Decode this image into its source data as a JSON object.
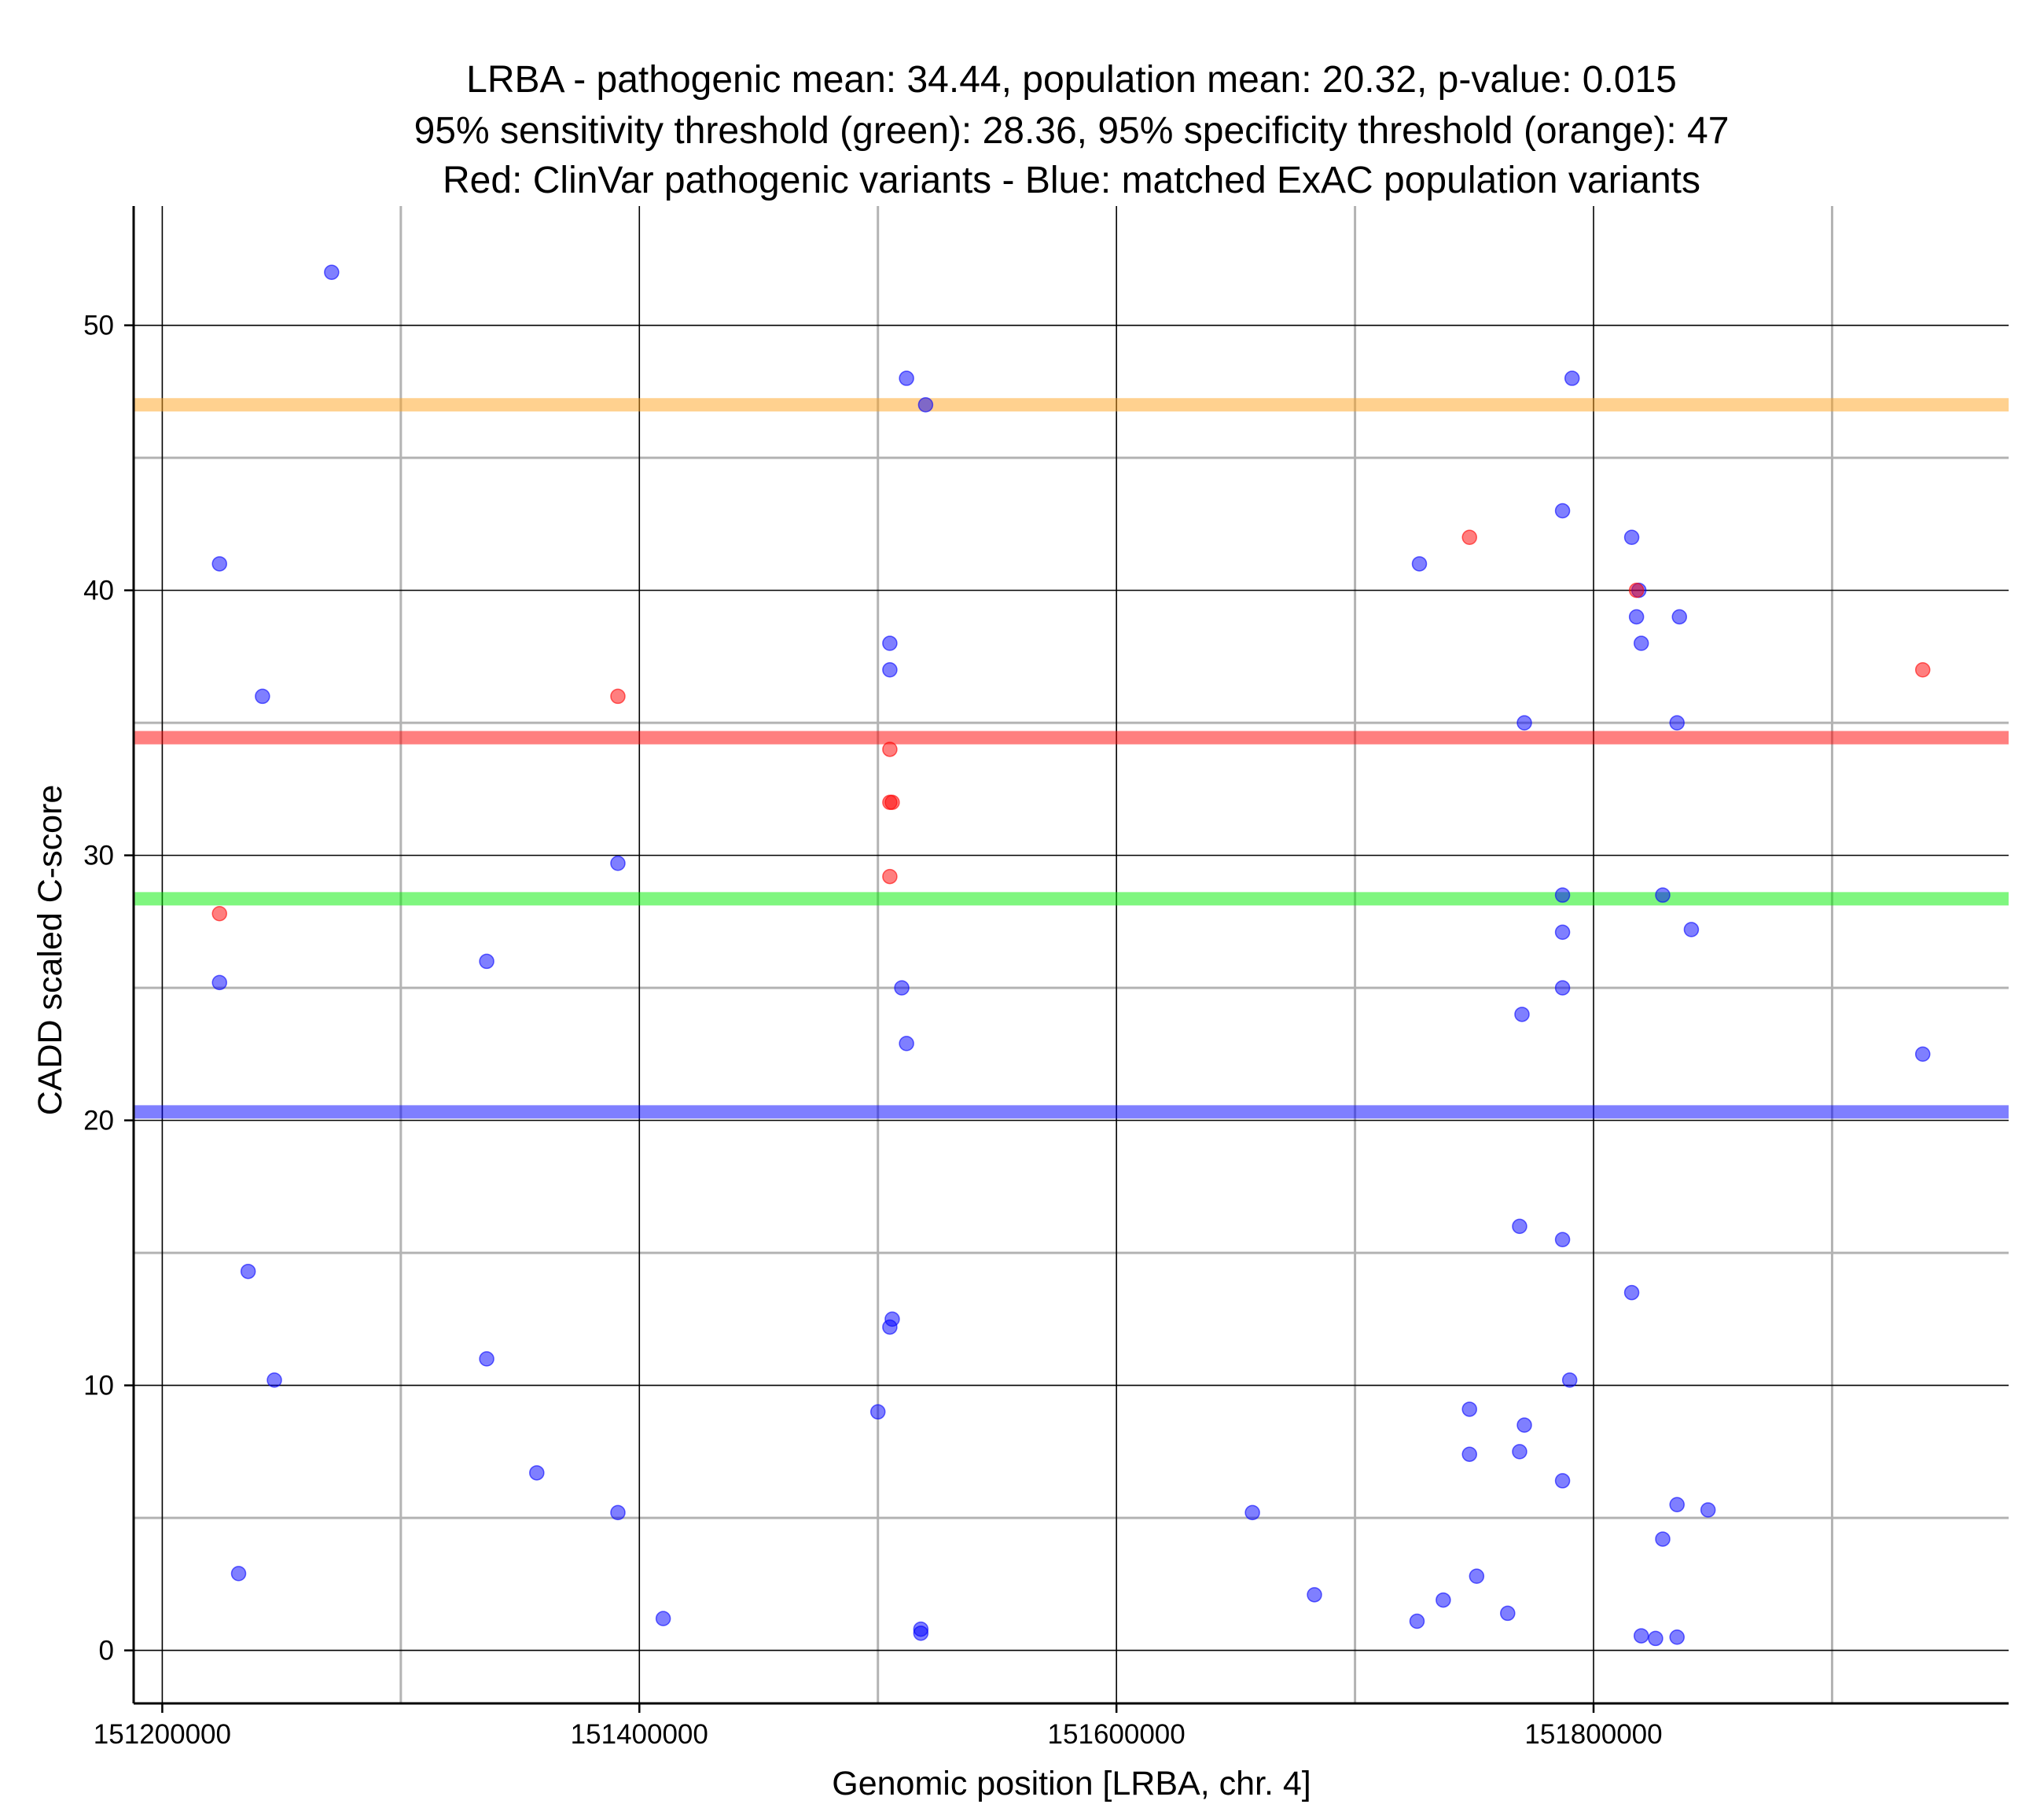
{
  "chart_data": {
    "type": "scatter",
    "title_lines": [
      "LRBA - pathogenic mean: 34.44, population mean: 20.32, p-value: 0.015",
      "95% sensitivity threshold (green): 28.36, 95% specificity threshold (orange): 47",
      "Red: ClinVar pathogenic variants - Blue: matched ExAC population variants"
    ],
    "xlabel": "Genomic position [LRBA, chr. 4]",
    "ylabel": "CADD scaled C-score",
    "xlim": [
      151188000,
      151974000
    ],
    "ylim": [
      -2,
      54.5
    ],
    "x_ticks": [
      151200000,
      151400000,
      151600000,
      151800000
    ],
    "x_tick_labels": [
      "151200000",
      "151400000",
      "151600000",
      "151800000"
    ],
    "x_minor_gridlines": [
      151300000,
      151500000,
      151700000,
      151900000
    ],
    "y_ticks": [
      0,
      10,
      20,
      30,
      40,
      50
    ],
    "y_tick_labels": [
      "0",
      "10",
      "20",
      "30",
      "40",
      "50"
    ],
    "y_minor_gridlines": [
      5,
      15,
      25,
      35,
      45
    ],
    "grid": true,
    "reference_lines": [
      {
        "label": "pathogenic mean",
        "y": 34.44,
        "color": "#ff0000"
      },
      {
        "label": "population mean",
        "y": 20.32,
        "color": "#0000ff"
      },
      {
        "label": "95% sensitivity threshold",
        "y": 28.36,
        "color": "#00ee00"
      },
      {
        "label": "95% specificity threshold",
        "y": 47,
        "color": "#ffa420"
      }
    ],
    "series": [
      {
        "name": "ClinVar pathogenic variants",
        "color": "#ff0000",
        "points": [
          [
            151224000,
            27.8
          ],
          [
            151391000,
            36
          ],
          [
            151505000,
            34
          ],
          [
            151505000,
            32
          ],
          [
            151506000,
            32
          ],
          [
            151505000,
            29.2
          ],
          [
            151748000,
            42
          ],
          [
            151818000,
            40
          ],
          [
            151938000,
            37
          ]
        ]
      },
      {
        "name": "matched ExAC population variants",
        "color": "#0000ff",
        "points": [
          [
            151271000,
            52
          ],
          [
            151224000,
            41
          ],
          [
            151242000,
            36
          ],
          [
            151224000,
            25.2
          ],
          [
            151236000,
            14.3
          ],
          [
            151247000,
            10.2
          ],
          [
            151232000,
            2.9
          ],
          [
            151336000,
            26
          ],
          [
            151336000,
            11
          ],
          [
            151357000,
            6.7
          ],
          [
            151391000,
            29.7
          ],
          [
            151391000,
            5.2
          ],
          [
            151410000,
            1.2
          ],
          [
            151512000,
            48
          ],
          [
            151520000,
            47
          ],
          [
            151505000,
            38
          ],
          [
            151505000,
            37
          ],
          [
            151510000,
            25
          ],
          [
            151512000,
            22.9
          ],
          [
            151506000,
            12.5
          ],
          [
            151505000,
            12.2
          ],
          [
            151500000,
            9
          ],
          [
            151518000,
            0.8
          ],
          [
            151518000,
            0.65
          ],
          [
            151657000,
            5.2
          ],
          [
            151683000,
            2.1
          ],
          [
            151727000,
            41
          ],
          [
            151726000,
            1.1
          ],
          [
            151737000,
            1.9
          ],
          [
            151748000,
            9.1
          ],
          [
            151748000,
            7.4
          ],
          [
            151751000,
            2.8
          ],
          [
            151764000,
            1.4
          ],
          [
            151771000,
            35
          ],
          [
            151770000,
            24
          ],
          [
            151769000,
            16
          ],
          [
            151771000,
            8.5
          ],
          [
            151769000,
            7.5
          ],
          [
            151787000,
            43
          ],
          [
            151787000,
            28.5
          ],
          [
            151787000,
            27.1
          ],
          [
            151787000,
            25
          ],
          [
            151787000,
            15.5
          ],
          [
            151787000,
            6.4
          ],
          [
            151791000,
            48
          ],
          [
            151790000,
            10.2
          ],
          [
            151816000,
            42
          ],
          [
            151819000,
            40
          ],
          [
            151818000,
            39
          ],
          [
            151820000,
            38
          ],
          [
            151816000,
            13.5
          ],
          [
            151820000,
            0.55
          ],
          [
            151826000,
            0.45
          ],
          [
            151829000,
            28.5
          ],
          [
            151829000,
            4.2
          ],
          [
            151836000,
            39
          ],
          [
            151835000,
            35
          ],
          [
            151835000,
            5.5
          ],
          [
            151835000,
            0.5
          ],
          [
            151841000,
            27.2
          ],
          [
            151848000,
            5.3
          ],
          [
            151938000,
            22.5
          ]
        ]
      }
    ]
  }
}
